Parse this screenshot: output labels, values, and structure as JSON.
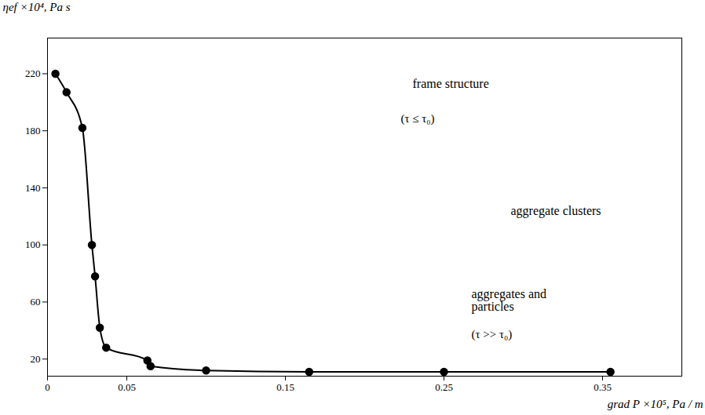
{
  "chart_data": {
    "type": "line",
    "x_label": "grad P ×10⁵, Pa / m",
    "y_label": "ηef ×10⁴, Pa s",
    "x": [
      0.005,
      0.012,
      0.022,
      0.028,
      0.03,
      0.033,
      0.037,
      0.063,
      0.065,
      0.1,
      0.165,
      0.25,
      0.355
    ],
    "series": [
      {
        "name": "ηef",
        "color": "#000000",
        "marker": "circle",
        "line_style": "solid",
        "values": [
          220,
          207,
          182,
          100,
          78,
          42,
          28,
          19,
          15,
          12,
          11,
          11,
          11
        ]
      }
    ],
    "xlim": [
      0,
      0.4
    ],
    "xticks": [
      0,
      0.05,
      0.15,
      0.25,
      0.35
    ],
    "ylim": [
      8,
      245
    ],
    "yticks": [
      20,
      60,
      100,
      140,
      180,
      220
    ],
    "grid": false,
    "annotations": [
      "frame structure",
      "(τ ≤ τ₀)",
      "aggregate clusters",
      "aggregates and particles",
      "(τ >> τ₀)"
    ]
  }
}
